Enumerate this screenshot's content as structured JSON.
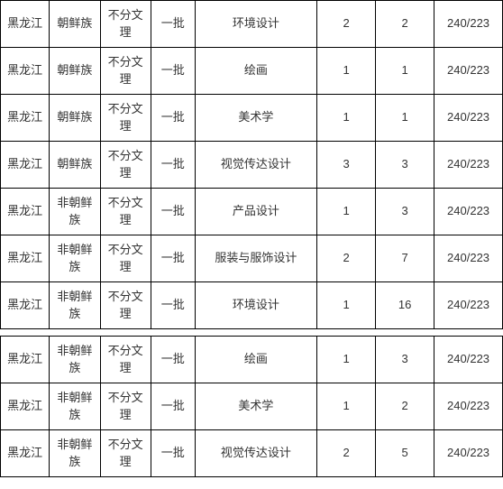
{
  "table": {
    "border_color": "#000000",
    "background_color": "#ffffff",
    "text_color": "#333333",
    "font_size": 13,
    "columns": [
      {
        "key": "province",
        "width": 50
      },
      {
        "key": "ethnic",
        "width": 52
      },
      {
        "key": "artsci",
        "width": 52
      },
      {
        "key": "batch",
        "width": 45
      },
      {
        "key": "major",
        "width": 125
      },
      {
        "key": "num1",
        "width": 60
      },
      {
        "key": "num2",
        "width": 60
      },
      {
        "key": "score",
        "width": 70
      }
    ],
    "rows": [
      {
        "province": "黑龙江",
        "ethnic": "朝鲜族",
        "artsci": "不分文理",
        "batch": "一批",
        "major": "环境设计",
        "num1": "2",
        "num2": "2",
        "score": "240/223"
      },
      {
        "province": "黑龙江",
        "ethnic": "朝鲜族",
        "artsci": "不分文理",
        "batch": "一批",
        "major": "绘画",
        "num1": "1",
        "num2": "1",
        "score": "240/223"
      },
      {
        "province": "黑龙江",
        "ethnic": "朝鲜族",
        "artsci": "不分文理",
        "batch": "一批",
        "major": "美术学",
        "num1": "1",
        "num2": "1",
        "score": "240/223"
      },
      {
        "province": "黑龙江",
        "ethnic": "朝鲜族",
        "artsci": "不分文理",
        "batch": "一批",
        "major": "视觉传达设计",
        "num1": "3",
        "num2": "3",
        "score": "240/223"
      },
      {
        "province": "黑龙江",
        "ethnic": "非朝鲜族",
        "artsci": "不分文理",
        "batch": "一批",
        "major": "产品设计",
        "num1": "1",
        "num2": "3",
        "score": "240/223"
      },
      {
        "province": "黑龙江",
        "ethnic": "非朝鲜族",
        "artsci": "不分文理",
        "batch": "一批",
        "major": "服装与服饰设计",
        "num1": "2",
        "num2": "7",
        "score": "240/223"
      },
      {
        "province": "黑龙江",
        "ethnic": "非朝鲜族",
        "artsci": "不分文理",
        "batch": "一批",
        "major": "环境设计",
        "num1": "1",
        "num2": "16",
        "score": "240/223"
      },
      {
        "gap": true
      },
      {
        "province": "黑龙江",
        "ethnic": "非朝鲜族",
        "artsci": "不分文理",
        "batch": "一批",
        "major": "绘画",
        "num1": "1",
        "num2": "3",
        "score": "240/223"
      },
      {
        "province": "黑龙江",
        "ethnic": "非朝鲜族",
        "artsci": "不分文理",
        "batch": "一批",
        "major": "美术学",
        "num1": "1",
        "num2": "2",
        "score": "240/223"
      },
      {
        "province": "黑龙江",
        "ethnic": "非朝鲜族",
        "artsci": "不分文理",
        "batch": "一批",
        "major": "视觉传达设计",
        "num1": "2",
        "num2": "5",
        "score": "240/223"
      }
    ]
  }
}
